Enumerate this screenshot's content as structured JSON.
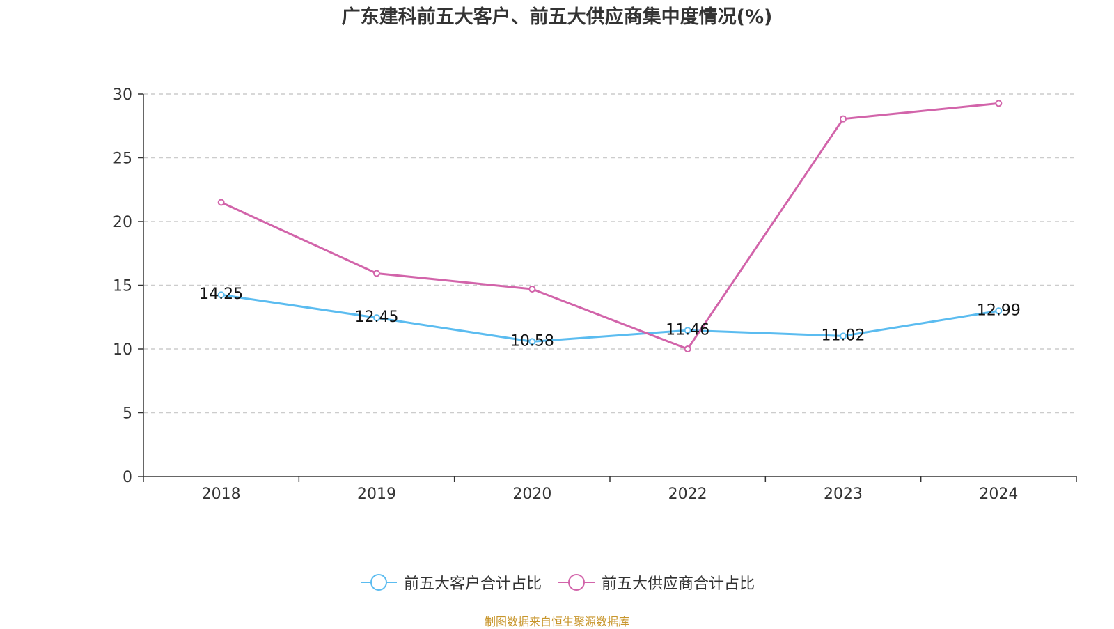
{
  "chart_data": {
    "type": "line",
    "title": "广东建科前五大客户、前五大供应商集中度情况(%)",
    "xlabel": "",
    "ylabel": "",
    "categories": [
      "2018",
      "2019",
      "2020",
      "2022",
      "2023",
      "2024"
    ],
    "ylim": [
      0,
      30
    ],
    "yticks": [
      0,
      5,
      10,
      15,
      20,
      25,
      30
    ],
    "grid": true,
    "legend_position": "bottom",
    "series": [
      {
        "name": "前五大客户合计占比",
        "color": "#5bbcf0",
        "values": [
          14.25,
          12.45,
          10.58,
          11.46,
          11.02,
          12.99
        ],
        "labels": [
          "14.25",
          "12.45",
          "10.58",
          "11.46",
          "11.02",
          "12.99"
        ]
      },
      {
        "name": "前五大供应商合计占比",
        "color": "#d264aa",
        "values": [
          21.5,
          15.93,
          14.7,
          10.0,
          28.05,
          29.27
        ]
      }
    ]
  },
  "source": "制图数据来自恒生聚源数据库"
}
